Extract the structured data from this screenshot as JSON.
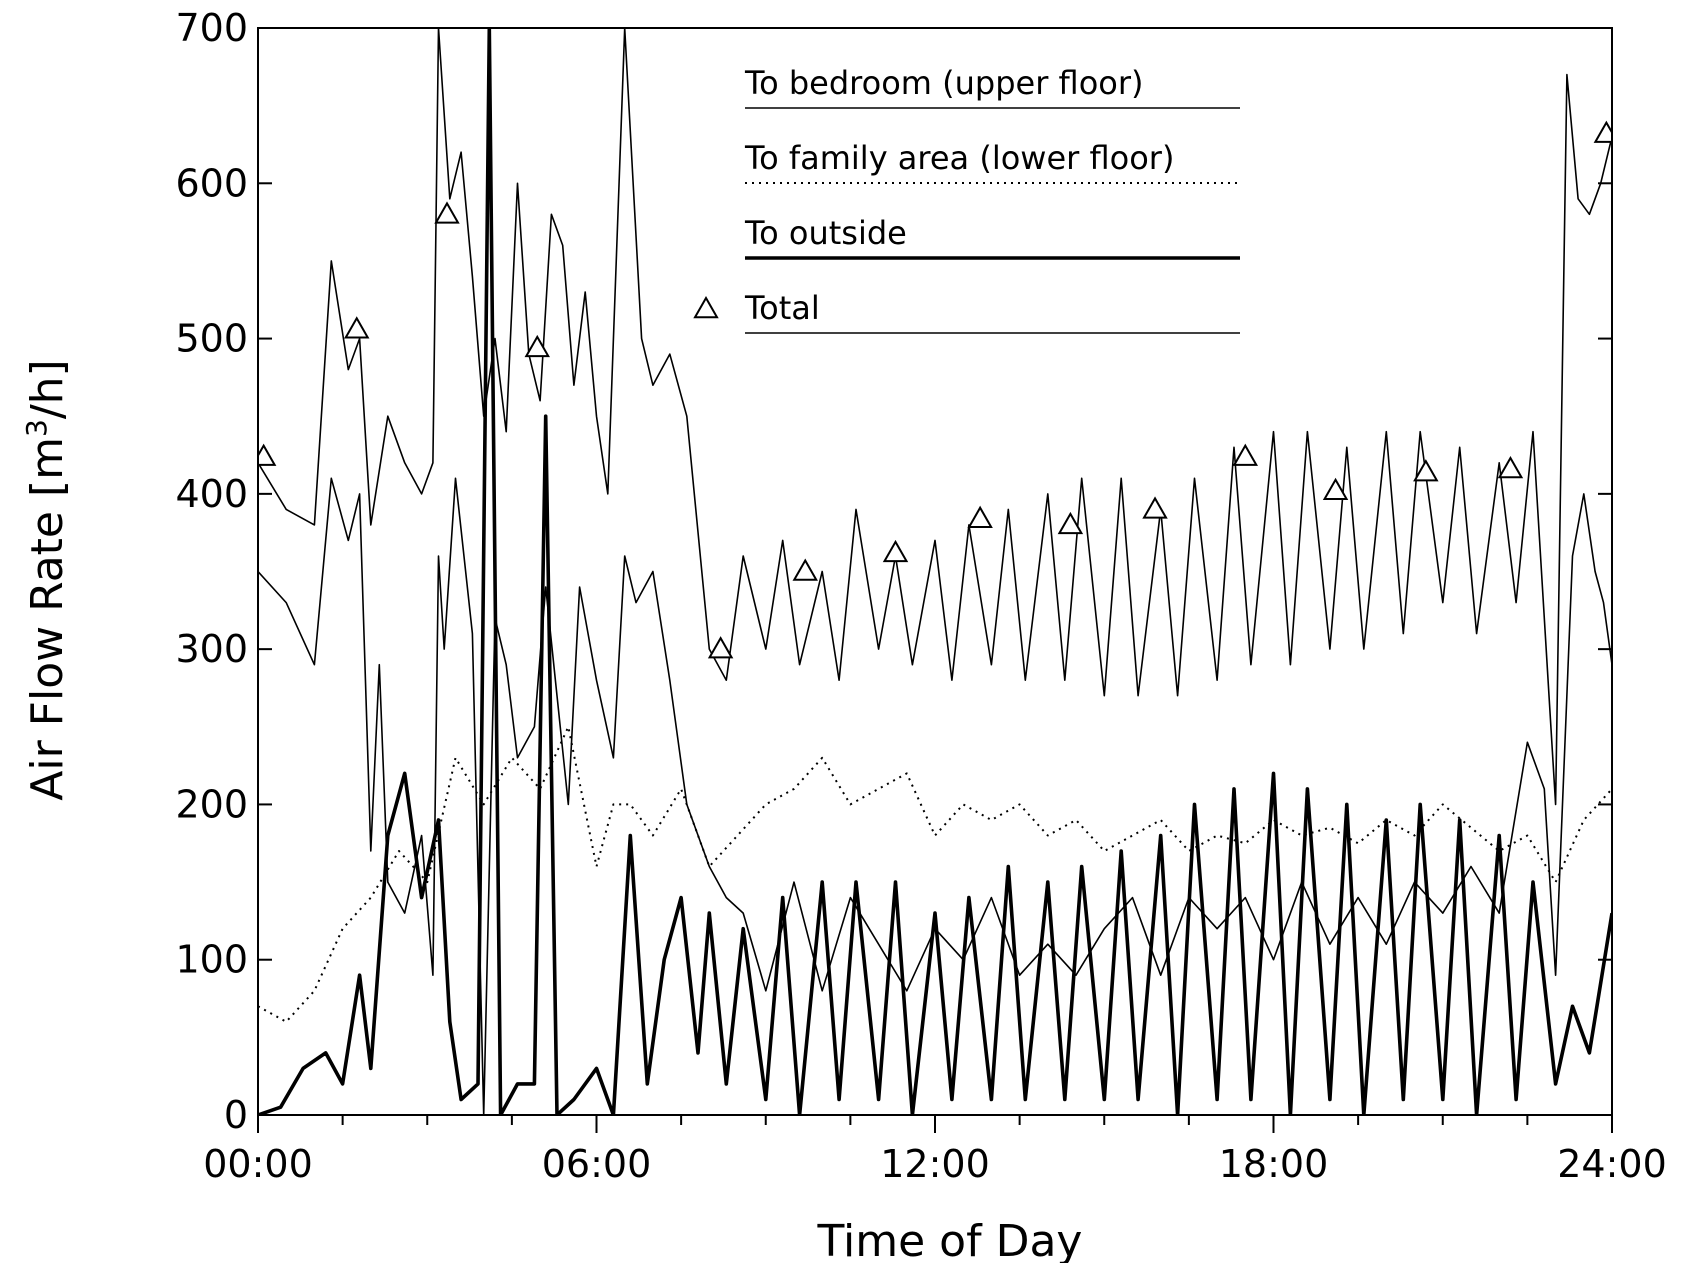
{
  "chart_data": {
    "type": "line",
    "xlabel": "Time of Day",
    "ylabel": "Air Flow Rate [m³/h]",
    "ylabel_main": "Air Flow Rate [m",
    "ylabel_sup": "3",
    "ylabel_end": "/h]",
    "xlim": [
      0,
      24
    ],
    "ylim": [
      0,
      700
    ],
    "x_ticks": [
      0,
      6,
      12,
      18,
      24
    ],
    "x_tick_labels": [
      "00:00",
      "06:00",
      "12:00",
      "18:00",
      "24:00"
    ],
    "x_minor_step": 1.5,
    "y_ticks": [
      0,
      100,
      200,
      300,
      400,
      500,
      600,
      700
    ],
    "y_tick_labels": [
      "0",
      "100",
      "200",
      "300",
      "400",
      "500",
      "600",
      "700"
    ],
    "grid": false,
    "legend_position": "top-center",
    "series": [
      {
        "name": "To bedroom (upper floor)",
        "style": "thin",
        "color": "#000000",
        "points": [
          [
            0,
            350
          ],
          [
            0.5,
            330
          ],
          [
            1,
            290
          ],
          [
            1.3,
            410
          ],
          [
            1.6,
            370
          ],
          [
            1.8,
            400
          ],
          [
            2,
            170
          ],
          [
            2.15,
            290
          ],
          [
            2.3,
            150
          ],
          [
            2.6,
            130
          ],
          [
            2.9,
            180
          ],
          [
            3.1,
            90
          ],
          [
            3.2,
            360
          ],
          [
            3.3,
            300
          ],
          [
            3.5,
            410
          ],
          [
            3.8,
            310
          ],
          [
            4,
            0
          ],
          [
            4.2,
            320
          ],
          [
            4.4,
            290
          ],
          [
            4.6,
            230
          ],
          [
            4.9,
            250
          ],
          [
            5.1,
            340
          ],
          [
            5.3,
            270
          ],
          [
            5.5,
            200
          ],
          [
            5.7,
            340
          ],
          [
            6,
            280
          ],
          [
            6.3,
            230
          ],
          [
            6.5,
            360
          ],
          [
            6.7,
            330
          ],
          [
            7,
            350
          ],
          [
            7.3,
            280
          ],
          [
            7.6,
            200
          ],
          [
            8,
            160
          ],
          [
            8.3,
            140
          ],
          [
            8.6,
            130
          ],
          [
            9,
            80
          ],
          [
            9.5,
            150
          ],
          [
            10,
            80
          ],
          [
            10.5,
            140
          ],
          [
            11,
            110
          ],
          [
            11.5,
            80
          ],
          [
            12,
            120
          ],
          [
            12.5,
            100
          ],
          [
            13,
            140
          ],
          [
            13.5,
            90
          ],
          [
            14,
            110
          ],
          [
            14.5,
            90
          ],
          [
            15,
            120
          ],
          [
            15.5,
            140
          ],
          [
            16,
            90
          ],
          [
            16.5,
            140
          ],
          [
            17,
            120
          ],
          [
            17.5,
            140
          ],
          [
            18,
            100
          ],
          [
            18.5,
            150
          ],
          [
            19,
            110
          ],
          [
            19.5,
            140
          ],
          [
            20,
            110
          ],
          [
            20.5,
            150
          ],
          [
            21,
            130
          ],
          [
            21.5,
            160
          ],
          [
            22,
            130
          ],
          [
            22.5,
            240
          ],
          [
            22.8,
            210
          ],
          [
            23,
            90
          ],
          [
            23.3,
            360
          ],
          [
            23.5,
            400
          ],
          [
            23.7,
            350
          ],
          [
            23.85,
            330
          ],
          [
            24,
            290
          ]
        ]
      },
      {
        "name": "To family area (lower floor)",
        "style": "dotted",
        "color": "#000000",
        "points": [
          [
            0,
            70
          ],
          [
            0.5,
            60
          ],
          [
            1,
            80
          ],
          [
            1.5,
            120
          ],
          [
            2,
            140
          ],
          [
            2.5,
            170
          ],
          [
            3,
            150
          ],
          [
            3.5,
            230
          ],
          [
            4,
            200
          ],
          [
            4.5,
            230
          ],
          [
            5,
            210
          ],
          [
            5.5,
            250
          ],
          [
            6,
            160
          ],
          [
            6.3,
            200
          ],
          [
            6.6,
            200
          ],
          [
            7,
            180
          ],
          [
            7.5,
            210
          ],
          [
            8,
            160
          ],
          [
            8.5,
            180
          ],
          [
            9,
            200
          ],
          [
            9.5,
            210
          ],
          [
            10,
            230
          ],
          [
            10.5,
            200
          ],
          [
            11,
            210
          ],
          [
            11.5,
            220
          ],
          [
            12,
            180
          ],
          [
            12.5,
            200
          ],
          [
            13,
            190
          ],
          [
            13.5,
            200
          ],
          [
            14,
            180
          ],
          [
            14.5,
            190
          ],
          [
            15,
            170
          ],
          [
            15.5,
            180
          ],
          [
            16,
            190
          ],
          [
            16.5,
            170
          ],
          [
            17,
            180
          ],
          [
            17.5,
            175
          ],
          [
            18,
            190
          ],
          [
            18.5,
            180
          ],
          [
            19,
            185
          ],
          [
            19.5,
            175
          ],
          [
            20,
            190
          ],
          [
            20.5,
            180
          ],
          [
            21,
            200
          ],
          [
            21.5,
            185
          ],
          [
            22,
            170
          ],
          [
            22.5,
            180
          ],
          [
            23,
            150
          ],
          [
            23.5,
            190
          ],
          [
            24,
            210
          ]
        ]
      },
      {
        "name": "To outside",
        "style": "bold",
        "color": "#000000",
        "points": [
          [
            0,
            0
          ],
          [
            0.4,
            5
          ],
          [
            0.8,
            30
          ],
          [
            1.2,
            40
          ],
          [
            1.5,
            20
          ],
          [
            1.8,
            90
          ],
          [
            2,
            30
          ],
          [
            2.3,
            180
          ],
          [
            2.6,
            220
          ],
          [
            2.9,
            140
          ],
          [
            3.2,
            190
          ],
          [
            3.4,
            60
          ],
          [
            3.6,
            10
          ],
          [
            3.9,
            20
          ],
          [
            4.1,
            700
          ],
          [
            4.3,
            0
          ],
          [
            4.6,
            20
          ],
          [
            4.9,
            20
          ],
          [
            5.1,
            450
          ],
          [
            5.3,
            0
          ],
          [
            5.6,
            10
          ],
          [
            6,
            30
          ],
          [
            6.3,
            0
          ],
          [
            6.6,
            180
          ],
          [
            6.9,
            20
          ],
          [
            7.2,
            100
          ],
          [
            7.5,
            140
          ],
          [
            7.8,
            40
          ],
          [
            8,
            130
          ],
          [
            8.3,
            20
          ],
          [
            8.6,
            120
          ],
          [
            9,
            10
          ],
          [
            9.3,
            140
          ],
          [
            9.6,
            0
          ],
          [
            10,
            150
          ],
          [
            10.3,
            10
          ],
          [
            10.6,
            150
          ],
          [
            11,
            10
          ],
          [
            11.3,
            150
          ],
          [
            11.6,
            0
          ],
          [
            12,
            130
          ],
          [
            12.3,
            10
          ],
          [
            12.6,
            140
          ],
          [
            13,
            10
          ],
          [
            13.3,
            160
          ],
          [
            13.6,
            10
          ],
          [
            14,
            150
          ],
          [
            14.3,
            10
          ],
          [
            14.6,
            160
          ],
          [
            15,
            10
          ],
          [
            15.3,
            170
          ],
          [
            15.6,
            10
          ],
          [
            16,
            180
          ],
          [
            16.3,
            0
          ],
          [
            16.6,
            200
          ],
          [
            17,
            10
          ],
          [
            17.3,
            210
          ],
          [
            17.6,
            10
          ],
          [
            18,
            220
          ],
          [
            18.3,
            0
          ],
          [
            18.6,
            210
          ],
          [
            19,
            10
          ],
          [
            19.3,
            200
          ],
          [
            19.6,
            0
          ],
          [
            20,
            190
          ],
          [
            20.3,
            10
          ],
          [
            20.6,
            200
          ],
          [
            21,
            10
          ],
          [
            21.3,
            190
          ],
          [
            21.6,
            0
          ],
          [
            22,
            180
          ],
          [
            22.3,
            10
          ],
          [
            22.6,
            150
          ],
          [
            23,
            20
          ],
          [
            23.3,
            70
          ],
          [
            23.6,
            40
          ],
          [
            24,
            130
          ]
        ]
      },
      {
        "name": "Total",
        "style": "thin-triangle",
        "color": "#000000",
        "points": [
          [
            0,
            420
          ],
          [
            0.5,
            390
          ],
          [
            1,
            380
          ],
          [
            1.3,
            550
          ],
          [
            1.6,
            480
          ],
          [
            1.8,
            500
          ],
          [
            2,
            380
          ],
          [
            2.3,
            450
          ],
          [
            2.6,
            420
          ],
          [
            2.9,
            400
          ],
          [
            3.1,
            420
          ],
          [
            3.2,
            700
          ],
          [
            3.4,
            590
          ],
          [
            3.6,
            620
          ],
          [
            3.8,
            540
          ],
          [
            4,
            450
          ],
          [
            4.2,
            500
          ],
          [
            4.4,
            440
          ],
          [
            4.6,
            600
          ],
          [
            4.8,
            490
          ],
          [
            5,
            460
          ],
          [
            5.2,
            580
          ],
          [
            5.4,
            560
          ],
          [
            5.6,
            470
          ],
          [
            5.8,
            530
          ],
          [
            6,
            450
          ],
          [
            6.2,
            400
          ],
          [
            6.5,
            700
          ],
          [
            6.8,
            500
          ],
          [
            7,
            470
          ],
          [
            7.3,
            490
          ],
          [
            7.6,
            450
          ],
          [
            8,
            300
          ],
          [
            8.3,
            280
          ],
          [
            8.6,
            360
          ],
          [
            9,
            300
          ],
          [
            9.3,
            370
          ],
          [
            9.6,
            290
          ],
          [
            10,
            350
          ],
          [
            10.3,
            280
          ],
          [
            10.6,
            390
          ],
          [
            11,
            300
          ],
          [
            11.3,
            360
          ],
          [
            11.6,
            290
          ],
          [
            12,
            370
          ],
          [
            12.3,
            280
          ],
          [
            12.6,
            380
          ],
          [
            13,
            290
          ],
          [
            13.3,
            390
          ],
          [
            13.6,
            280
          ],
          [
            14,
            400
          ],
          [
            14.3,
            280
          ],
          [
            14.6,
            410
          ],
          [
            15,
            270
          ],
          [
            15.3,
            410
          ],
          [
            15.6,
            270
          ],
          [
            16,
            390
          ],
          [
            16.3,
            270
          ],
          [
            16.6,
            410
          ],
          [
            17,
            280
          ],
          [
            17.3,
            430
          ],
          [
            17.6,
            290
          ],
          [
            18,
            440
          ],
          [
            18.3,
            290
          ],
          [
            18.6,
            440
          ],
          [
            19,
            300
          ],
          [
            19.3,
            430
          ],
          [
            19.6,
            300
          ],
          [
            20,
            440
          ],
          [
            20.3,
            310
          ],
          [
            20.6,
            440
          ],
          [
            21,
            330
          ],
          [
            21.3,
            430
          ],
          [
            21.6,
            310
          ],
          [
            22,
            420
          ],
          [
            22.3,
            330
          ],
          [
            22.6,
            440
          ],
          [
            23,
            200
          ],
          [
            23.2,
            670
          ],
          [
            23.4,
            590
          ],
          [
            23.6,
            580
          ],
          [
            23.8,
            600
          ],
          [
            24,
            630
          ]
        ],
        "markers": [
          [
            0.1,
            424
          ],
          [
            1.75,
            506
          ],
          [
            3.35,
            580
          ],
          [
            4.95,
            494
          ],
          [
            8.2,
            300
          ],
          [
            9.7,
            350
          ],
          [
            11.3,
            362
          ],
          [
            12.8,
            384
          ],
          [
            14.4,
            380
          ],
          [
            15.9,
            390
          ],
          [
            17.5,
            424
          ],
          [
            19.1,
            402
          ],
          [
            20.7,
            414
          ],
          [
            22.2,
            416
          ],
          [
            23.9,
            632
          ]
        ]
      }
    ]
  }
}
